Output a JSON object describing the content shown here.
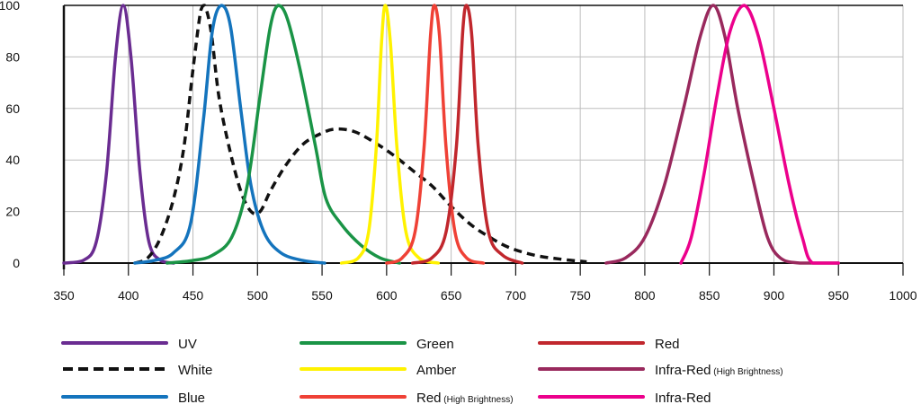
{
  "chart_data": {
    "type": "line",
    "title": "",
    "xlabel": "",
    "ylabel": "",
    "xlim": [
      350,
      1000
    ],
    "ylim": [
      0,
      100
    ],
    "x_ticks": [
      350,
      400,
      450,
      500,
      550,
      600,
      650,
      700,
      750,
      800,
      850,
      900,
      950,
      1000
    ],
    "y_ticks": [
      0,
      20,
      40,
      60,
      80,
      100
    ],
    "grid": true,
    "legend_position": "bottom",
    "series": [
      {
        "name": "UV",
        "note": "",
        "color": "#6a2c91",
        "dash": false,
        "points": [
          [
            350,
            0
          ],
          [
            365,
            1
          ],
          [
            375,
            8
          ],
          [
            383,
            35
          ],
          [
            390,
            80
          ],
          [
            396,
            100
          ],
          [
            402,
            80
          ],
          [
            409,
            35
          ],
          [
            416,
            8
          ],
          [
            425,
            1
          ],
          [
            435,
            0
          ]
        ]
      },
      {
        "name": "White",
        "note": "",
        "color": "#111111",
        "dash": true,
        "points": [
          [
            405,
            0
          ],
          [
            415,
            2
          ],
          [
            425,
            10
          ],
          [
            435,
            25
          ],
          [
            443,
            45
          ],
          [
            450,
            75
          ],
          [
            456,
            98
          ],
          [
            459,
            100
          ],
          [
            464,
            90
          ],
          [
            470,
            65
          ],
          [
            478,
            45
          ],
          [
            487,
            28
          ],
          [
            495,
            20
          ],
          [
            502,
            20
          ],
          [
            510,
            28
          ],
          [
            522,
            38
          ],
          [
            535,
            46
          ],
          [
            548,
            50
          ],
          [
            560,
            52
          ],
          [
            575,
            51
          ],
          [
            590,
            47
          ],
          [
            605,
            42
          ],
          [
            620,
            36
          ],
          [
            635,
            30
          ],
          [
            650,
            22
          ],
          [
            665,
            15
          ],
          [
            680,
            10
          ],
          [
            695,
            6
          ],
          [
            715,
            3
          ],
          [
            735,
            1.5
          ],
          [
            755,
            0.5
          ]
        ]
      },
      {
        "name": "Blue",
        "note": "",
        "color": "#1474bd",
        "dash": false,
        "points": [
          [
            405,
            0
          ],
          [
            420,
            1
          ],
          [
            435,
            4
          ],
          [
            448,
            15
          ],
          [
            458,
            55
          ],
          [
            465,
            90
          ],
          [
            472,
            100
          ],
          [
            479,
            92
          ],
          [
            487,
            60
          ],
          [
            495,
            30
          ],
          [
            505,
            12
          ],
          [
            518,
            4
          ],
          [
            535,
            1
          ],
          [
            552,
            0
          ]
        ]
      },
      {
        "name": "Green",
        "note": "",
        "color": "#1a9446",
        "dash": false,
        "points": [
          [
            430,
            0
          ],
          [
            450,
            1
          ],
          [
            465,
            3
          ],
          [
            480,
            10
          ],
          [
            492,
            30
          ],
          [
            502,
            65
          ],
          [
            510,
            92
          ],
          [
            516,
            100
          ],
          [
            523,
            95
          ],
          [
            533,
            75
          ],
          [
            545,
            45
          ],
          [
            553,
            25
          ],
          [
            565,
            15
          ],
          [
            580,
            7
          ],
          [
            595,
            2
          ],
          [
            610,
            0
          ]
        ]
      },
      {
        "name": "Amber",
        "note": "",
        "color": "#fff200",
        "dash": false,
        "points": [
          [
            565,
            0
          ],
          [
            578,
            2
          ],
          [
            586,
            12
          ],
          [
            592,
            45
          ],
          [
            596,
            85
          ],
          [
            599,
            100
          ],
          [
            603,
            85
          ],
          [
            608,
            45
          ],
          [
            615,
            12
          ],
          [
            625,
            2
          ],
          [
            640,
            0
          ]
        ]
      },
      {
        "name": "Red",
        "note": "High Brightness",
        "color": "#ef4136",
        "dash": false,
        "points": [
          [
            600,
            0
          ],
          [
            612,
            2
          ],
          [
            622,
            12
          ],
          [
            629,
            45
          ],
          [
            634,
            88
          ],
          [
            637,
            100
          ],
          [
            641,
            88
          ],
          [
            646,
            45
          ],
          [
            653,
            12
          ],
          [
            662,
            2
          ],
          [
            675,
            0
          ]
        ]
      },
      {
        "name": "Red",
        "note": "",
        "color": "#c1272d",
        "dash": false,
        "points": [
          [
            620,
            0
          ],
          [
            635,
            2
          ],
          [
            646,
            12
          ],
          [
            654,
            45
          ],
          [
            659,
            90
          ],
          [
            662,
            100
          ],
          [
            666,
            88
          ],
          [
            671,
            45
          ],
          [
            679,
            12
          ],
          [
            690,
            3
          ],
          [
            705,
            0
          ]
        ]
      },
      {
        "name": "Infra-Red",
        "note": "High Brightness",
        "color": "#99295d",
        "dash": false,
        "points": [
          [
            770,
            0
          ],
          [
            785,
            2
          ],
          [
            800,
            10
          ],
          [
            815,
            30
          ],
          [
            830,
            60
          ],
          [
            843,
            88
          ],
          [
            853,
            100
          ],
          [
            862,
            88
          ],
          [
            872,
            60
          ],
          [
            885,
            30
          ],
          [
            895,
            10
          ],
          [
            905,
            2
          ],
          [
            920,
            0
          ],
          [
            950,
            0
          ]
        ]
      },
      {
        "name": "Infra-Red",
        "note": "",
        "color": "#ec008c",
        "dash": false,
        "points": [
          [
            828,
            0
          ],
          [
            836,
            10
          ],
          [
            846,
            35
          ],
          [
            856,
            65
          ],
          [
            866,
            90
          ],
          [
            877,
            100
          ],
          [
            888,
            88
          ],
          [
            900,
            60
          ],
          [
            912,
            30
          ],
          [
            922,
            10
          ],
          [
            930,
            0
          ],
          [
            950,
            0
          ]
        ]
      }
    ]
  }
}
